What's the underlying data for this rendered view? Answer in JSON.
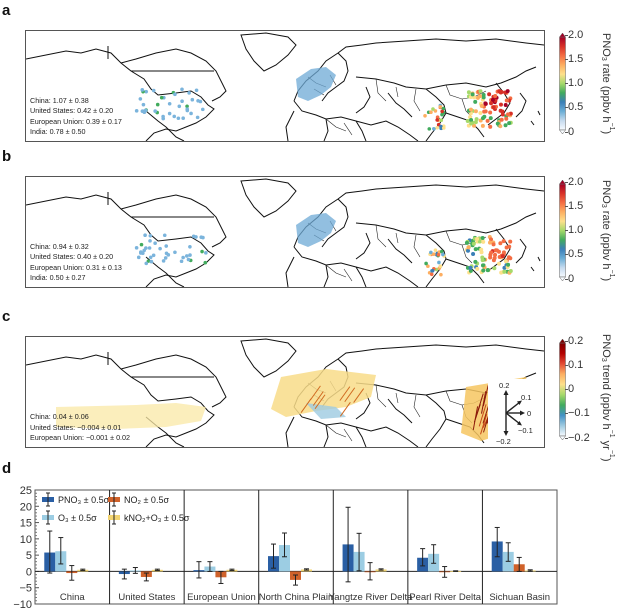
{
  "panels": {
    "a": {
      "letter": "a",
      "stats": [
        "China: 1.07 ± 0.38",
        "United States: 0.42 ± 0.20",
        "European Union: 0.39 ± 0.17",
        "India: 0.78 ± 0.50"
      ],
      "colorbar": {
        "title_main": "PNO",
        "title_sub": "3",
        "title_rest": " rate (ppbv h",
        "title_sup": "−1",
        "title_end": ")",
        "ticks": [
          "2.0",
          "1.5",
          "1.0",
          "0.5",
          "0"
        ]
      }
    },
    "b": {
      "letter": "b",
      "stats": [
        "China: 0.94 ± 0.32",
        "United States: 0.40 ± 0.20",
        "European Union: 0.31 ± 0.13",
        "India: 0.50 ± 0.27"
      ],
      "colorbar": {
        "title_main": "PNO",
        "title_sub": "3",
        "title_rest": " rate (ppbv h",
        "title_sup": "−1",
        "title_end": ")",
        "ticks": [
          "2.0",
          "1.5",
          "1.0",
          "0.5",
          "0"
        ]
      }
    },
    "c": {
      "letter": "c",
      "stats": [
        "China: 0.04 ± 0.06",
        "United States: −0.004 ± 0.01",
        "European Union: −0.001 ± 0.02"
      ],
      "colorbar": {
        "title_main": "PNO",
        "title_sub": "3",
        "title_rest": " trend (ppbv h",
        "title_sup": "−1",
        "title_mid": " yr",
        "title_sup2": "−1",
        "title_end": ")",
        "ticks": [
          "0.2",
          "0.1",
          "0",
          "−0.1",
          "−0.2"
        ]
      },
      "arrow_key": [
        "0.2",
        "0.1",
        "0",
        "−0.1",
        "−0.2"
      ]
    },
    "d": {
      "letter": "d"
    }
  },
  "colors": {
    "pno3": "#2a5fa4",
    "o3": "#9ccde3",
    "no2": "#d0622a",
    "k": "#f2d472"
  },
  "chart_data": {
    "type": "bar",
    "title": "",
    "xlabel": "",
    "ylabel": "",
    "ylim": [
      -10,
      25
    ],
    "yticks": [
      "25",
      "20",
      "15",
      "10",
      "5",
      "0",
      "−5",
      "−10"
    ],
    "ytick_values": [
      25,
      20,
      15,
      10,
      5,
      0,
      -5,
      -10
    ],
    "categories": [
      "China",
      "United States",
      "European Union",
      "North China Plain",
      "Yangtze River Delta",
      "Pearl River Delta",
      "Sichuan Basin"
    ],
    "legend": [
      {
        "key": "pno3",
        "label": "PNO₃ ± 0.5σ"
      },
      {
        "key": "o3",
        "label": "O₃ ± 0.5σ"
      },
      {
        "key": "no2",
        "label": "NO₂ ± 0.5σ"
      },
      {
        "key": "k",
        "label": "kNO₂+O₃ ± 0.5σ"
      }
    ],
    "series": [
      {
        "name": "PNO3",
        "key": "pno3",
        "values": [
          5.8,
          -0.8,
          0.4,
          4.7,
          8.3,
          4.2,
          9.2
        ],
        "err_low": [
          -0.5,
          -2.3,
          -2.0,
          1.0,
          -3.2,
          1.7,
          4.5
        ],
        "err_high": [
          12.4,
          0.7,
          3.0,
          8.4,
          19.7,
          7.0,
          13.5
        ]
      },
      {
        "name": "O3",
        "key": "o3",
        "values": [
          6.2,
          0.3,
          1.5,
          8.1,
          6.0,
          5.4,
          6.0
        ],
        "err_low": [
          2.3,
          -0.6,
          0.0,
          4.5,
          0.2,
          2.5,
          3.1
        ],
        "err_high": [
          10.4,
          1.2,
          3.0,
          11.8,
          11.7,
          8.2,
          8.8
        ]
      },
      {
        "name": "NO2",
        "key": "no2",
        "values": [
          -0.5,
          -1.7,
          -1.8,
          -2.6,
          0.0,
          0.0,
          2.2
        ],
        "err_low": [
          -2.7,
          -2.9,
          -3.7,
          -4.2,
          -2.6,
          -1.8,
          0.0
        ],
        "err_high": [
          1.8,
          -0.5,
          0.0,
          -1.1,
          2.7,
          1.5,
          4.3
        ]
      },
      {
        "name": "k NO2+O3",
        "key": "k",
        "values": [
          0.5,
          0.5,
          0.5,
          0.6,
          0.6,
          0.1,
          0.3
        ],
        "err_low": [
          0.3,
          0.3,
          0.3,
          0.4,
          0.4,
          0.0,
          0.1
        ],
        "err_high": [
          0.7,
          0.7,
          0.7,
          0.8,
          0.8,
          0.2,
          0.5
        ]
      }
    ],
    "grid": false
  }
}
